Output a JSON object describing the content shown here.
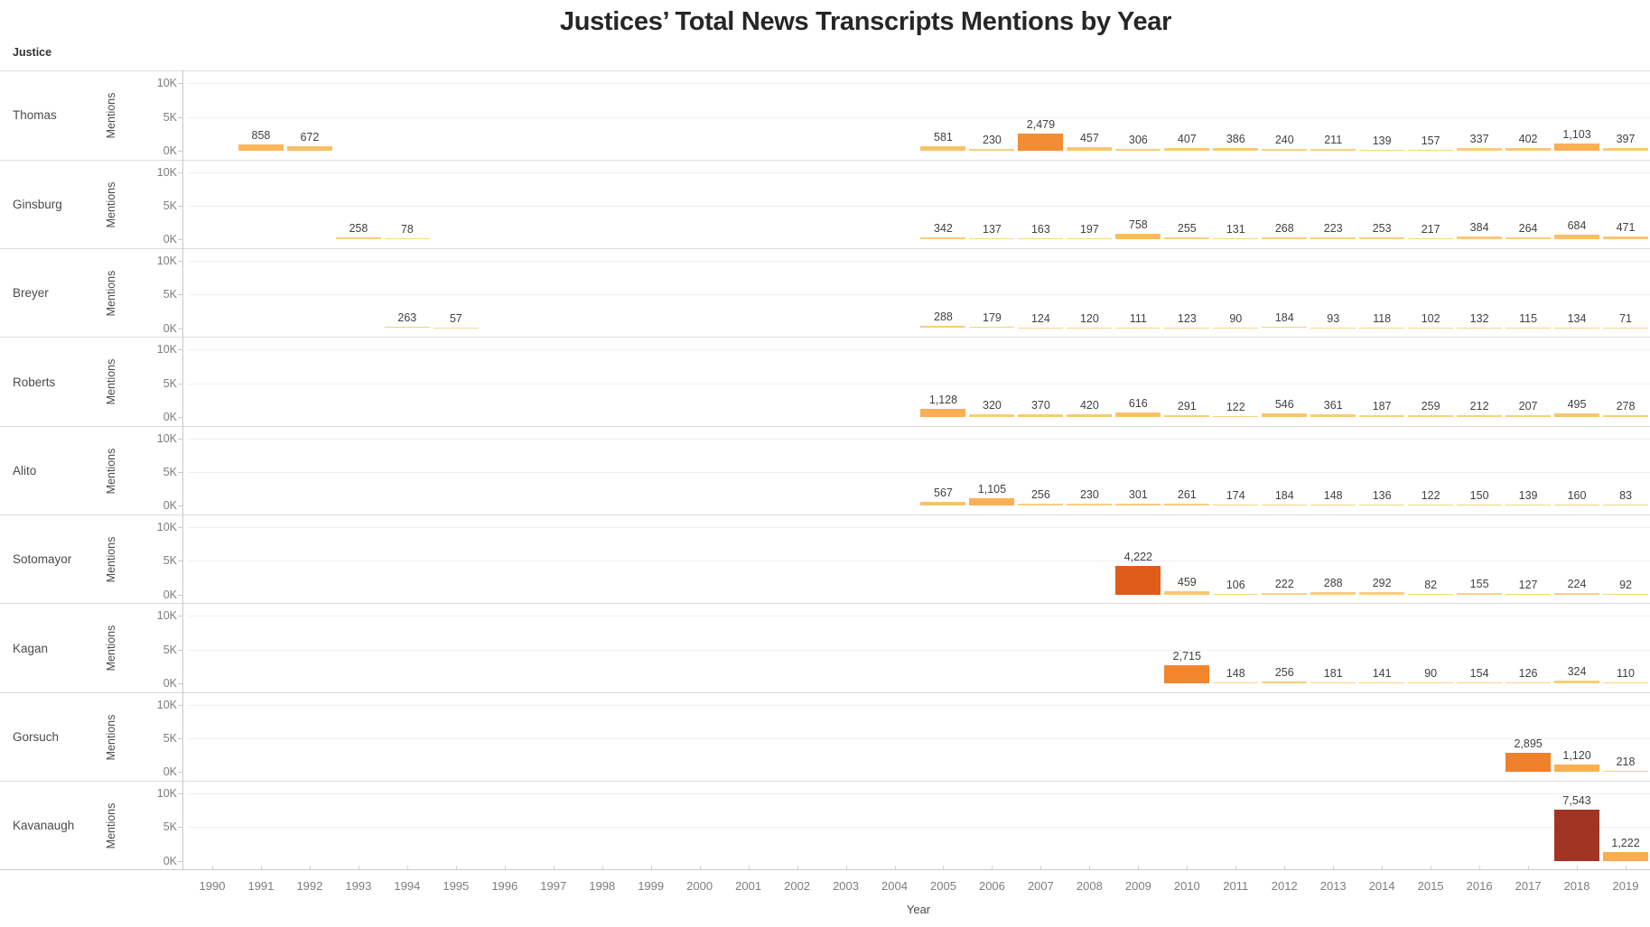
{
  "title": "Justices’ Total News Transcripts Mentions by Year",
  "row_field_label": "Justice",
  "y_axis": {
    "title": "Mentions",
    "tick_labels": [
      "10K",
      "5K",
      "0K"
    ],
    "min": 0,
    "max": 10000
  },
  "x_axis": {
    "title": "Year",
    "years": [
      1990,
      1991,
      1992,
      1993,
      1994,
      1995,
      1996,
      1997,
      1998,
      1999,
      2000,
      2001,
      2002,
      2003,
      2004,
      2005,
      2006,
      2007,
      2008,
      2009,
      2010,
      2011,
      2012,
      2013,
      2014,
      2015,
      2016,
      2017,
      2018,
      2019
    ]
  },
  "chart_data": {
    "type": "bar",
    "title": "Justices’ Total News Transcripts Mentions by Year",
    "xlabel": "Year",
    "ylabel": "Mentions",
    "x_range": [
      1990,
      2019
    ],
    "ylim": [
      0,
      10000
    ],
    "y_ticks": [
      0,
      5000,
      10000
    ],
    "grid": true,
    "legend": "none",
    "layout": "small-multiples-rows",
    "series": [
      {
        "name": "Thomas",
        "values": {
          "1991": 858,
          "1992": 672,
          "2005": 581,
          "2006": 230,
          "2007": 2479,
          "2008": 457,
          "2009": 306,
          "2010": 407,
          "2011": 386,
          "2012": 240,
          "2013": 211,
          "2014": 139,
          "2015": 157,
          "2016": 337,
          "2017": 402,
          "2018": 1103,
          "2019": 397
        }
      },
      {
        "name": "Ginsburg",
        "values": {
          "1993": 258,
          "1994": 78,
          "2005": 342,
          "2006": 137,
          "2007": 163,
          "2008": 197,
          "2009": 758,
          "2010": 255,
          "2011": 131,
          "2012": 268,
          "2013": 223,
          "2014": 253,
          "2015": 217,
          "2016": 384,
          "2017": 264,
          "2018": 684,
          "2019": 471
        }
      },
      {
        "name": "Breyer",
        "values": {
          "1994": 263,
          "1995": 57,
          "2005": 288,
          "2006": 179,
          "2007": 124,
          "2008": 120,
          "2009": 111,
          "2010": 123,
          "2011": 90,
          "2012": 184,
          "2013": 93,
          "2014": 118,
          "2015": 102,
          "2016": 132,
          "2017": 115,
          "2018": 134,
          "2019": 71
        }
      },
      {
        "name": "Roberts",
        "values": {
          "2005": 1128,
          "2006": 320,
          "2007": 370,
          "2008": 420,
          "2009": 616,
          "2010": 291,
          "2011": 122,
          "2012": 546,
          "2013": 361,
          "2014": 187,
          "2015": 259,
          "2016": 212,
          "2017": 207,
          "2018": 495,
          "2019": 278
        }
      },
      {
        "name": "Alito",
        "values": {
          "2005": 567,
          "2006": 1105,
          "2007": 256,
          "2008": 230,
          "2009": 301,
          "2010": 261,
          "2011": 174,
          "2012": 184,
          "2013": 148,
          "2014": 136,
          "2015": 122,
          "2016": 150,
          "2017": 139,
          "2018": 160,
          "2019": 83
        }
      },
      {
        "name": "Sotomayor",
        "values": {
          "2009": 4222,
          "2010": 459,
          "2011": 106,
          "2012": 222,
          "2013": 288,
          "2014": 292,
          "2015": 82,
          "2016": 155,
          "2017": 127,
          "2018": 224,
          "2019": 92
        }
      },
      {
        "name": "Kagan",
        "values": {
          "2010": 2715,
          "2011": 148,
          "2012": 256,
          "2013": 181,
          "2014": 141,
          "2015": 90,
          "2016": 154,
          "2017": 126,
          "2018": 324,
          "2019": 110
        }
      },
      {
        "name": "Gorsuch",
        "values": {
          "2017": 2895,
          "2018": 1120,
          "2019": 218
        }
      },
      {
        "name": "Kavanaugh",
        "values": {
          "2018": 7543,
          "2019": 1222
        }
      }
    ],
    "color_scale": {
      "stops": [
        {
          "value": 0,
          "color": "#F8D888"
        },
        {
          "value": 1000,
          "color": "#FBB255"
        },
        {
          "value": 2700,
          "color": "#F2862D"
        },
        {
          "value": 4300,
          "color": "#DE5A19"
        },
        {
          "value": 7500,
          "color": "#A13523"
        },
        {
          "value": 10000,
          "color": "#8B2A17"
        }
      ]
    }
  }
}
